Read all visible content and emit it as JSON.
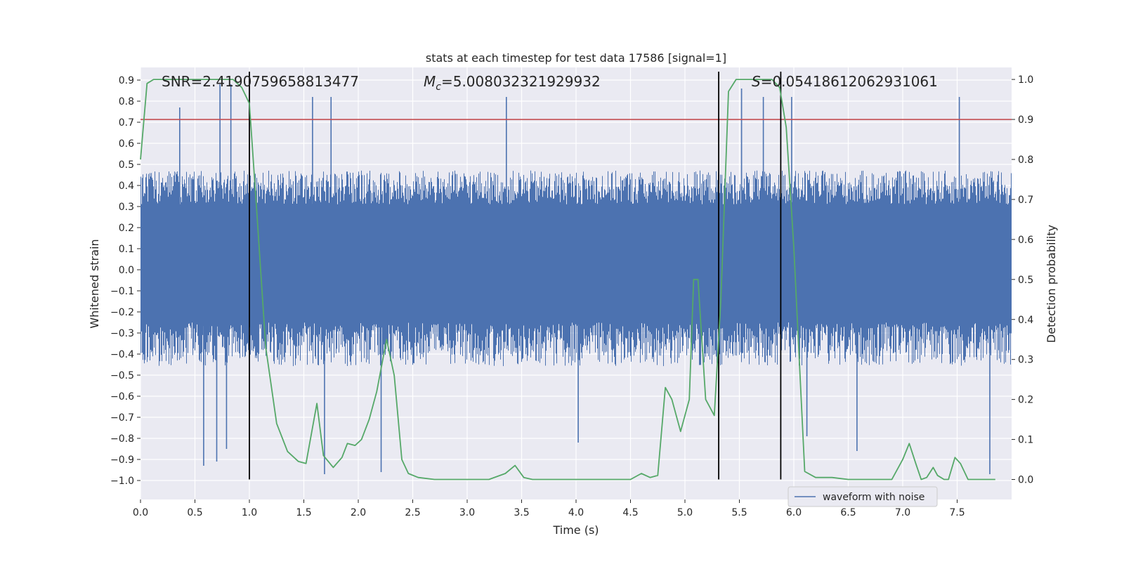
{
  "chart_data": {
    "type": "line",
    "title": "stats at each timestep for test data 17586 [signal=1]",
    "xlabel": "Time (s)",
    "ylabel_left": "Whitened strain",
    "ylabel_right": "Detection probability",
    "xlim": [
      0.0,
      8.0
    ],
    "ylim_left": [
      -1.09,
      0.96
    ],
    "ylim_right": [
      -0.05,
      1.03
    ],
    "xticks": [
      "0.0",
      "0.5",
      "1.0",
      "1.5",
      "2.0",
      "2.5",
      "3.0",
      "3.5",
      "4.0",
      "4.5",
      "5.0",
      "5.5",
      "6.0",
      "6.5",
      "7.0",
      "7.5"
    ],
    "yticks_left": [
      "0.9",
      "0.8",
      "0.7",
      "0.6",
      "0.5",
      "0.4",
      "0.3",
      "0.2",
      "0.1",
      "0.0",
      "-0.1",
      "-0.2",
      "-0.3",
      "-0.4",
      "-0.5",
      "-0.6",
      "-0.7",
      "-0.8",
      "-0.9",
      "-1.0"
    ],
    "yticks_right": [
      "1.0",
      "0.9",
      "0.8",
      "0.7",
      "0.6",
      "0.5",
      "0.4",
      "0.3",
      "0.2",
      "0.1",
      "0.0"
    ],
    "grid": true,
    "legend": {
      "entries": [
        "waveform with noise"
      ],
      "placement": "lower-right"
    },
    "annotations": {
      "snr": "SNR=2.4190759658813477",
      "mc_symbol": "M",
      "mc_sub": "c",
      "mc_value": "=5.008032321929932",
      "s_symbol": "S",
      "s_value": "=0.05418612062931061"
    },
    "threshold": {
      "axis": "right",
      "value": 0.9,
      "color": "#c44e52"
    },
    "vertical_lines": [
      1.0,
      5.31,
      5.88
    ],
    "series": [
      {
        "name": "waveform with noise",
        "axis": "left",
        "color": "#4c72b0",
        "kind": "noise-band",
        "band_low": -0.25,
        "band_high": 0.31,
        "typical_peak": 0.45,
        "typical_trough": -0.43,
        "max_peak": 0.88,
        "min_trough": -0.97,
        "upper_spikes": [
          [
            0.36,
            0.77
          ],
          [
            0.73,
            0.88
          ],
          [
            0.83,
            0.88
          ],
          [
            1.58,
            0.82
          ],
          [
            1.75,
            0.82
          ],
          [
            3.36,
            0.82
          ],
          [
            5.52,
            0.86
          ],
          [
            5.72,
            0.82
          ],
          [
            5.98,
            0.82
          ],
          [
            7.52,
            0.82
          ]
        ],
        "lower_spikes": [
          [
            0.58,
            -0.93
          ],
          [
            0.7,
            -0.91
          ],
          [
            0.79,
            -0.85
          ],
          [
            1.69,
            -0.97
          ],
          [
            2.21,
            -0.96
          ],
          [
            4.02,
            -0.82
          ],
          [
            6.12,
            -0.79
          ],
          [
            6.58,
            -0.86
          ],
          [
            7.8,
            -0.97
          ]
        ]
      },
      {
        "name": "",
        "axis": "right",
        "color": "#55a868",
        "kind": "line",
        "x": [
          0.0,
          0.06,
          0.12,
          0.25,
          0.5,
          0.75,
          0.85,
          0.93,
          1.0,
          1.07,
          1.15,
          1.25,
          1.35,
          1.45,
          1.52,
          1.62,
          1.68,
          1.77,
          1.85,
          1.9,
          1.97,
          2.03,
          2.1,
          2.17,
          2.26,
          2.33,
          2.4,
          2.46,
          2.55,
          2.7,
          2.85,
          2.97,
          3.05,
          3.2,
          3.35,
          3.44,
          3.52,
          3.6,
          3.75,
          3.9,
          4.1,
          4.3,
          4.5,
          4.6,
          4.68,
          4.75,
          4.82,
          4.88,
          4.96,
          5.04,
          5.08,
          5.12,
          5.19,
          5.27,
          5.33,
          5.4,
          5.47,
          5.55,
          5.7,
          5.8,
          5.87,
          5.93,
          6.0,
          6.1,
          6.2,
          6.35,
          6.5,
          6.7,
          6.9,
          7.0,
          7.06,
          7.12,
          7.17,
          7.22,
          7.28,
          7.32,
          7.38,
          7.42,
          7.48,
          7.53,
          7.6,
          7.7,
          7.85
        ],
        "y": [
          0.8,
          0.99,
          1.0,
          1.0,
          1.0,
          1.0,
          1.0,
          0.98,
          0.94,
          0.66,
          0.33,
          0.14,
          0.07,
          0.045,
          0.04,
          0.19,
          0.06,
          0.03,
          0.055,
          0.09,
          0.085,
          0.1,
          0.15,
          0.22,
          0.35,
          0.26,
          0.05,
          0.015,
          0.005,
          0.0,
          0.0,
          0.0,
          0.0,
          0.0,
          0.015,
          0.035,
          0.005,
          0.0,
          0.0,
          0.0,
          0.0,
          0.0,
          0.0,
          0.015,
          0.005,
          0.01,
          0.23,
          0.2,
          0.12,
          0.2,
          0.5,
          0.5,
          0.2,
          0.16,
          0.45,
          0.97,
          1.0,
          1.0,
          1.0,
          1.0,
          0.98,
          0.88,
          0.58,
          0.02,
          0.005,
          0.005,
          0.0,
          0.0,
          0.0,
          0.05,
          0.09,
          0.04,
          0.0,
          0.005,
          0.03,
          0.01,
          0.0,
          0.0,
          0.055,
          0.04,
          0.0,
          0.0,
          0.0
        ]
      }
    ]
  }
}
